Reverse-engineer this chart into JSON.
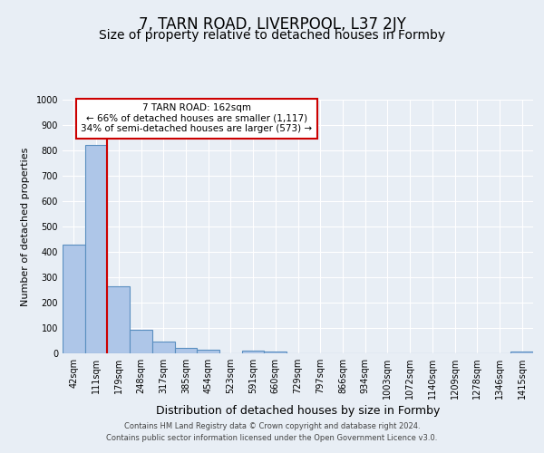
{
  "title": "7, TARN ROAD, LIVERPOOL, L37 2JY",
  "subtitle": "Size of property relative to detached houses in Formby",
  "xlabel": "Distribution of detached houses by size in Formby",
  "ylabel": "Number of detached properties",
  "footnote1": "Contains HM Land Registry data © Crown copyright and database right 2024.",
  "footnote2": "Contains public sector information licensed under the Open Government Licence v3.0.",
  "bin_labels": [
    "42sqm",
    "111sqm",
    "179sqm",
    "248sqm",
    "317sqm",
    "385sqm",
    "454sqm",
    "523sqm",
    "591sqm",
    "660sqm",
    "729sqm",
    "797sqm",
    "866sqm",
    "934sqm",
    "1003sqm",
    "1072sqm",
    "1140sqm",
    "1209sqm",
    "1278sqm",
    "1346sqm",
    "1415sqm"
  ],
  "bar_values": [
    430,
    820,
    265,
    92,
    48,
    22,
    13,
    0,
    10,
    7,
    0,
    0,
    0,
    0,
    0,
    0,
    0,
    0,
    0,
    0,
    7
  ],
  "bar_color": "#aec6e8",
  "bar_edge_color": "#5a8fc0",
  "bar_edge_width": 0.8,
  "vline_color": "#cc0000",
  "ylim": [
    0,
    1000
  ],
  "yticks": [
    0,
    100,
    200,
    300,
    400,
    500,
    600,
    700,
    800,
    900,
    1000
  ],
  "annotation_title": "7 TARN ROAD: 162sqm",
  "annotation_line1": "← 66% of detached houses are smaller (1,117)",
  "annotation_line2": "34% of semi-detached houses are larger (573) →",
  "annotation_box_color": "#ffffff",
  "annotation_box_edge": "#cc0000",
  "bg_color": "#e8eef5",
  "plot_bg_color": "#e8eef5",
  "grid_color": "#ffffff",
  "title_fontsize": 12,
  "subtitle_fontsize": 10,
  "xlabel_fontsize": 9,
  "ylabel_fontsize": 8,
  "tick_fontsize": 7,
  "footnote_fontsize": 6
}
